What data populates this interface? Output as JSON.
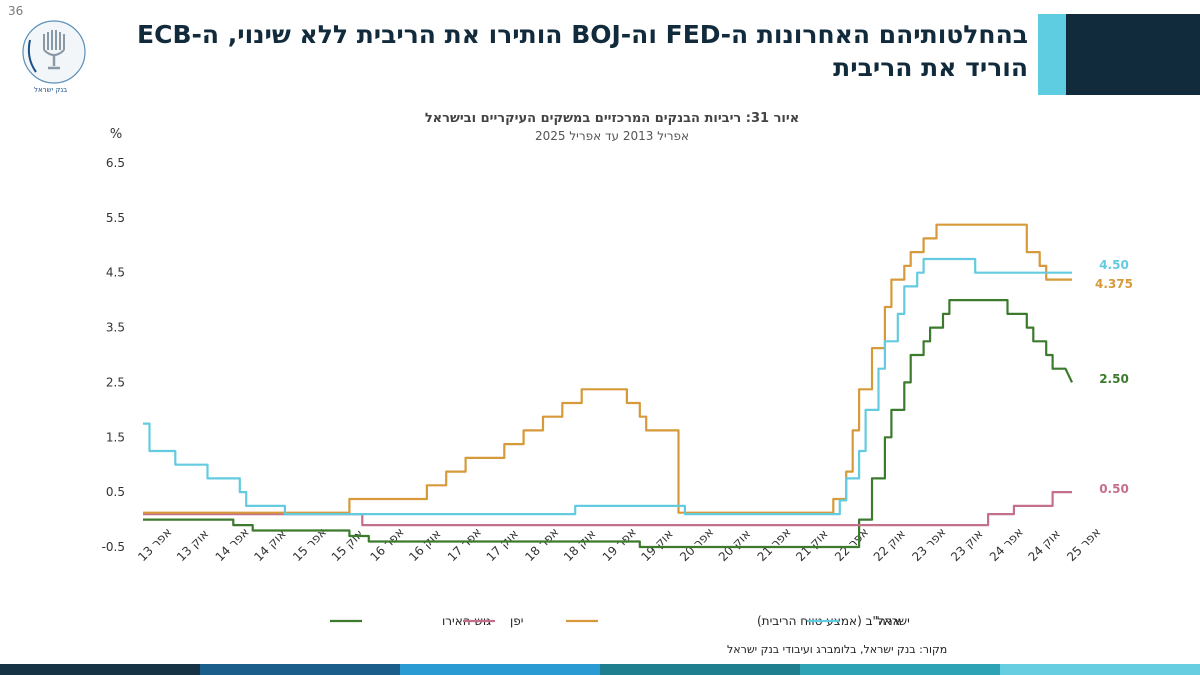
{
  "page": {
    "number": "36"
  },
  "header": {
    "title": "בהחלטותיהם האחרונות ה-FED וה-BOJ הותירו את הריבית ללא שינוי, ה-ECB הוריד את הריבית",
    "bar_color": "#122b3c",
    "accent_color": "#5ecde2"
  },
  "logo": {
    "icon": "bank-of-israel-menorah-seal",
    "text_en": "BANK OF ISRAEL",
    "text_he": "בנק ישראל"
  },
  "colors": {
    "eurozone": "#3c7a2e",
    "japan": "#c5708a",
    "usa": "#d69a3a",
    "israel": "#63cbe0"
  },
  "chart_data": {
    "type": "line",
    "title": "איור 31: ריביות הבנקים המרכזיים במשקים העיקריים ובישראל",
    "subtitle": "אפריל 2013 עד אפריל 2025",
    "ylabel": "%",
    "ylim": [
      -0.5,
      6.5
    ],
    "yticks": [
      "6.5",
      "5.5",
      "4.5",
      "3.5",
      "2.5",
      "1.5",
      "0.5",
      "-0.5"
    ],
    "ytick_values": [
      6.5,
      5.5,
      4.5,
      3.5,
      2.5,
      1.5,
      0.5,
      -0.5
    ],
    "x_start": "2013-04",
    "x_end": "2025-04",
    "xticks": [
      "אפר 13",
      "אוק 13",
      "אפר 14",
      "אוק 14",
      "אפר 15",
      "אוק 15",
      "אפר 16",
      "אוק 16",
      "אפר 17",
      "אוק 17",
      "אפר 18",
      "אוק 18",
      "אפר 19",
      "אוק 19",
      "אפר 20",
      "אוק 20",
      "אפר 21",
      "אוק 21",
      "אפר 22",
      "אוק 22",
      "אפר 23",
      "אוק 23",
      "אפר 24",
      "אוק 24",
      "אפר 25"
    ],
    "grid": false,
    "legend_position": "bottom",
    "series": [
      {
        "name": "גוש האירו",
        "label": "2.50",
        "points": [
          [
            "2013-04",
            0
          ],
          [
            "2013-11",
            0
          ],
          [
            "2014-06",
            0
          ],
          [
            "2014-06",
            -0.1
          ],
          [
            "2014-09",
            -0.1
          ],
          [
            "2014-09",
            -0.2
          ],
          [
            "2015-12",
            -0.2
          ],
          [
            "2015-12",
            -0.3
          ],
          [
            "2016-03",
            -0.3
          ],
          [
            "2016-03",
            -0.4
          ],
          [
            "2019-09",
            -0.4
          ],
          [
            "2019-09",
            -0.5
          ],
          [
            "2022-07",
            -0.5
          ],
          [
            "2022-07",
            0
          ],
          [
            "2022-09",
            0
          ],
          [
            "2022-09",
            0.75
          ],
          [
            "2022-11",
            0.75
          ],
          [
            "2022-11",
            1.5
          ],
          [
            "2022-12",
            1.5
          ],
          [
            "2022-12",
            2
          ],
          [
            "2023-02",
            2
          ],
          [
            "2023-02",
            2.5
          ],
          [
            "2023-03",
            2.5
          ],
          [
            "2023-03",
            3
          ],
          [
            "2023-05",
            3
          ],
          [
            "2023-05",
            3.25
          ],
          [
            "2023-06",
            3.25
          ],
          [
            "2023-06",
            3.5
          ],
          [
            "2023-08",
            3.5
          ],
          [
            "2023-08",
            3.75
          ],
          [
            "2023-09",
            3.75
          ],
          [
            "2023-09",
            4
          ],
          [
            "2024-06",
            4
          ],
          [
            "2024-06",
            3.75
          ],
          [
            "2024-09",
            3.75
          ],
          [
            "2024-09",
            3.5
          ],
          [
            "2024-10",
            3.5
          ],
          [
            "2024-10",
            3.25
          ],
          [
            "2024-12",
            3.25
          ],
          [
            "2024-12",
            3
          ],
          [
            "2025-01",
            3
          ],
          [
            "2025-01",
            2.75
          ],
          [
            "2025-03",
            2.75
          ],
          [
            "2025-04",
            2.5
          ]
        ]
      },
      {
        "name": "יפן",
        "label": "0.50",
        "points": [
          [
            "2013-04",
            0.1
          ],
          [
            "2016-02",
            0.1
          ],
          [
            "2016-02",
            -0.1
          ],
          [
            "2024-03",
            -0.1
          ],
          [
            "2024-03",
            0.1
          ],
          [
            "2024-07",
            0.1
          ],
          [
            "2024-07",
            0.25
          ],
          [
            "2025-01",
            0.25
          ],
          [
            "2025-01",
            0.5
          ],
          [
            "2025-04",
            0.5
          ]
        ]
      },
      {
        "name": "ארה\"ב (אמצע טווח הריבית)",
        "label": "4.375",
        "points": [
          [
            "2013-04",
            0.125
          ],
          [
            "2015-12",
            0.125
          ],
          [
            "2015-12",
            0.375
          ],
          [
            "2016-12",
            0.375
          ],
          [
            "2016-12",
            0.625
          ],
          [
            "2017-03",
            0.625
          ],
          [
            "2017-03",
            0.875
          ],
          [
            "2017-06",
            0.875
          ],
          [
            "2017-06",
            1.125
          ],
          [
            "2017-12",
            1.125
          ],
          [
            "2017-12",
            1.375
          ],
          [
            "2018-03",
            1.375
          ],
          [
            "2018-03",
            1.625
          ],
          [
            "2018-06",
            1.625
          ],
          [
            "2018-06",
            1.875
          ],
          [
            "2018-09",
            1.875
          ],
          [
            "2018-09",
            2.125
          ],
          [
            "2018-12",
            2.125
          ],
          [
            "2018-12",
            2.375
          ],
          [
            "2019-07",
            2.375
          ],
          [
            "2019-07",
            2.125
          ],
          [
            "2019-09",
            2.125
          ],
          [
            "2019-09",
            1.875
          ],
          [
            "2019-10",
            1.875
          ],
          [
            "2019-10",
            1.625
          ],
          [
            "2020-03",
            1.625
          ],
          [
            "2020-03",
            0.125
          ],
          [
            "2022-03",
            0.125
          ],
          [
            "2022-03",
            0.375
          ],
          [
            "2022-05",
            0.375
          ],
          [
            "2022-05",
            0.875
          ],
          [
            "2022-06",
            0.875
          ],
          [
            "2022-06",
            1.625
          ],
          [
            "2022-07",
            1.625
          ],
          [
            "2022-07",
            2.375
          ],
          [
            "2022-09",
            2.375
          ],
          [
            "2022-09",
            3.125
          ],
          [
            "2022-11",
            3.125
          ],
          [
            "2022-11",
            3.875
          ],
          [
            "2022-12",
            3.875
          ],
          [
            "2022-12",
            4.375
          ],
          [
            "2023-02",
            4.375
          ],
          [
            "2023-02",
            4.625
          ],
          [
            "2023-03",
            4.625
          ],
          [
            "2023-03",
            4.875
          ],
          [
            "2023-05",
            4.875
          ],
          [
            "2023-05",
            5.125
          ],
          [
            "2023-07",
            5.125
          ],
          [
            "2023-07",
            5.375
          ],
          [
            "2024-09",
            5.375
          ],
          [
            "2024-09",
            4.875
          ],
          [
            "2024-11",
            4.875
          ],
          [
            "2024-11",
            4.625
          ],
          [
            "2024-12",
            4.625
          ],
          [
            "2024-12",
            4.375
          ],
          [
            "2025-04",
            4.375
          ]
        ]
      },
      {
        "name": "ישראל",
        "label": "4.50",
        "points": [
          [
            "2013-04",
            1.75
          ],
          [
            "2013-05",
            1.75
          ],
          [
            "2013-05",
            1.25
          ],
          [
            "2013-09",
            1.25
          ],
          [
            "2013-09",
            1
          ],
          [
            "2014-02",
            1
          ],
          [
            "2014-02",
            0.75
          ],
          [
            "2014-07",
            0.75
          ],
          [
            "2014-07",
            0.5
          ],
          [
            "2014-08",
            0.5
          ],
          [
            "2014-08",
            0.25
          ],
          [
            "2015-02",
            0.25
          ],
          [
            "2015-02",
            0.1
          ],
          [
            "2018-11",
            0.1
          ],
          [
            "2018-11",
            0.25
          ],
          [
            "2020-04",
            0.25
          ],
          [
            "2020-04",
            0.1
          ],
          [
            "2022-04",
            0.1
          ],
          [
            "2022-04",
            0.35
          ],
          [
            "2022-05",
            0.35
          ],
          [
            "2022-05",
            0.75
          ],
          [
            "2022-07",
            0.75
          ],
          [
            "2022-07",
            1.25
          ],
          [
            "2022-08",
            1.25
          ],
          [
            "2022-08",
            2
          ],
          [
            "2022-10",
            2
          ],
          [
            "2022-10",
            2.75
          ],
          [
            "2022-11",
            2.75
          ],
          [
            "2022-11",
            3.25
          ],
          [
            "2023-01",
            3.25
          ],
          [
            "2023-01",
            3.75
          ],
          [
            "2023-02",
            3.75
          ],
          [
            "2023-02",
            4.25
          ],
          [
            "2023-04",
            4.25
          ],
          [
            "2023-04",
            4.5
          ],
          [
            "2023-05",
            4.5
          ],
          [
            "2023-05",
            4.75
          ],
          [
            "2024-01",
            4.75
          ],
          [
            "2024-01",
            4.5
          ],
          [
            "2025-04",
            4.5
          ]
        ]
      }
    ],
    "source": "מקור: בנק ישראל, בלומברג ועיבודי בנק ישראל"
  },
  "bottom_strip": [
    "#163346",
    "#1b5e8b",
    "#2a9bd3",
    "#1f7f8f",
    "#2ea3b5",
    "#67cde0"
  ]
}
